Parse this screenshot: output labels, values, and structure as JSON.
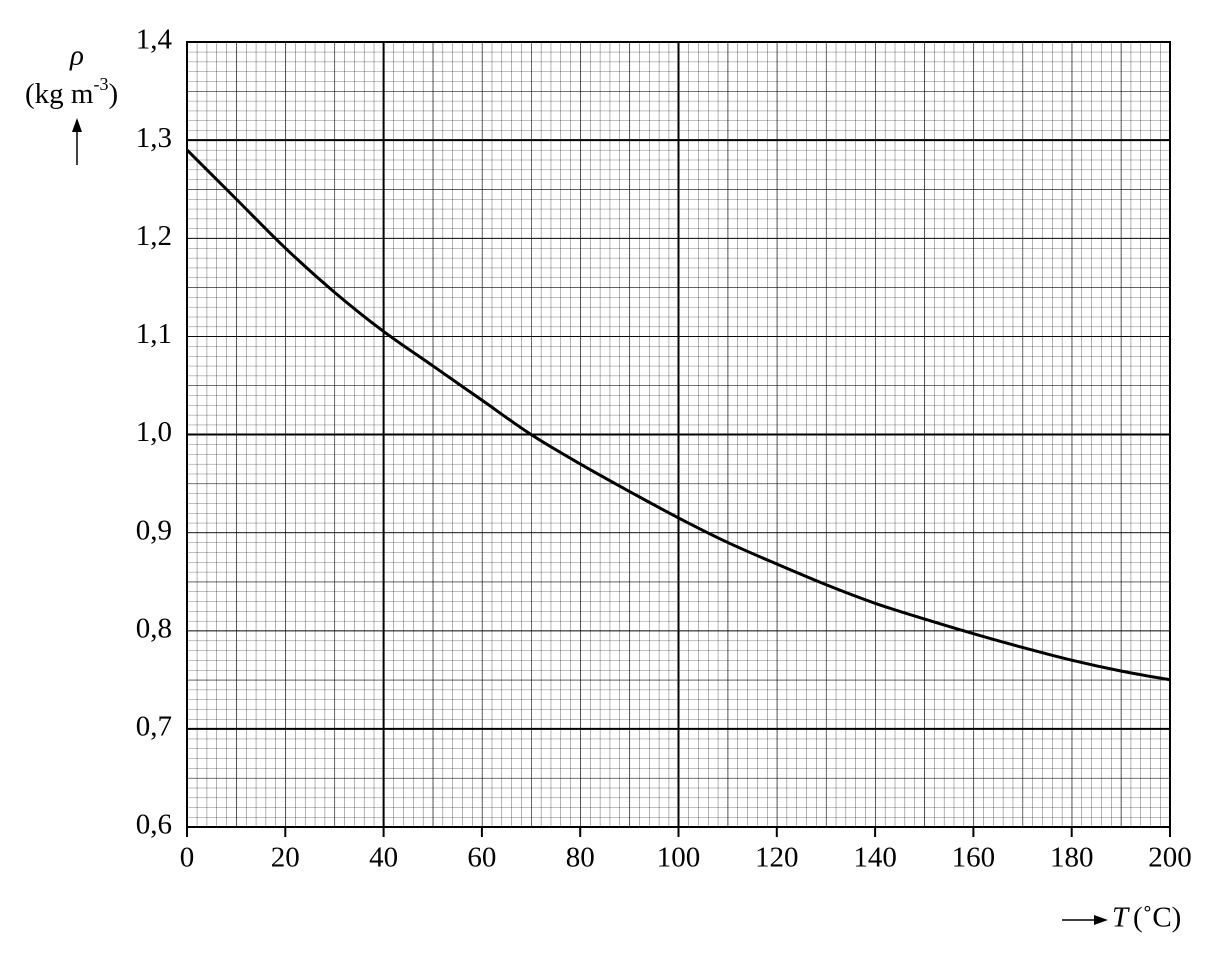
{
  "chart_data": {
    "type": "line",
    "y_label": {
      "symbol": "ρ",
      "unit": "(kg m",
      "exponent": "-3",
      "close": ")"
    },
    "x_label": {
      "symbol": "T",
      "unit": "(˚C)"
    },
    "x": [
      0,
      10,
      20,
      30,
      40,
      50,
      60,
      70,
      80,
      90,
      100,
      110,
      120,
      130,
      140,
      150,
      160,
      170,
      180,
      190,
      200
    ],
    "series": [
      {
        "color": "#000000",
        "values": [
          1.29,
          1.24,
          1.19,
          1.145,
          1.105,
          1.07,
          1.035,
          1.0,
          0.97,
          0.942,
          0.915,
          0.89,
          0.868,
          0.847,
          0.828,
          0.812,
          0.797,
          0.783,
          0.77,
          0.759,
          0.75
        ]
      }
    ],
    "xlim": [
      0,
      200
    ],
    "xticks": [
      0,
      20,
      40,
      60,
      80,
      100,
      120,
      140,
      160,
      180,
      200
    ],
    "ylim": [
      0.6,
      1.4
    ],
    "yticks": [
      {
        "value": 0.6,
        "label": "0,6"
      },
      {
        "value": 0.7,
        "label": "0,7"
      },
      {
        "value": 0.8,
        "label": "0,8"
      },
      {
        "value": 0.9,
        "label": "0,9"
      },
      {
        "value": 1.0,
        "label": "1,0"
      },
      {
        "value": 1.1,
        "label": "1,1"
      },
      {
        "value": 1.2,
        "label": "1,2"
      },
      {
        "value": 1.3,
        "label": "1,3"
      },
      {
        "value": 1.4,
        "label": "1,4"
      }
    ],
    "grid": true
  }
}
